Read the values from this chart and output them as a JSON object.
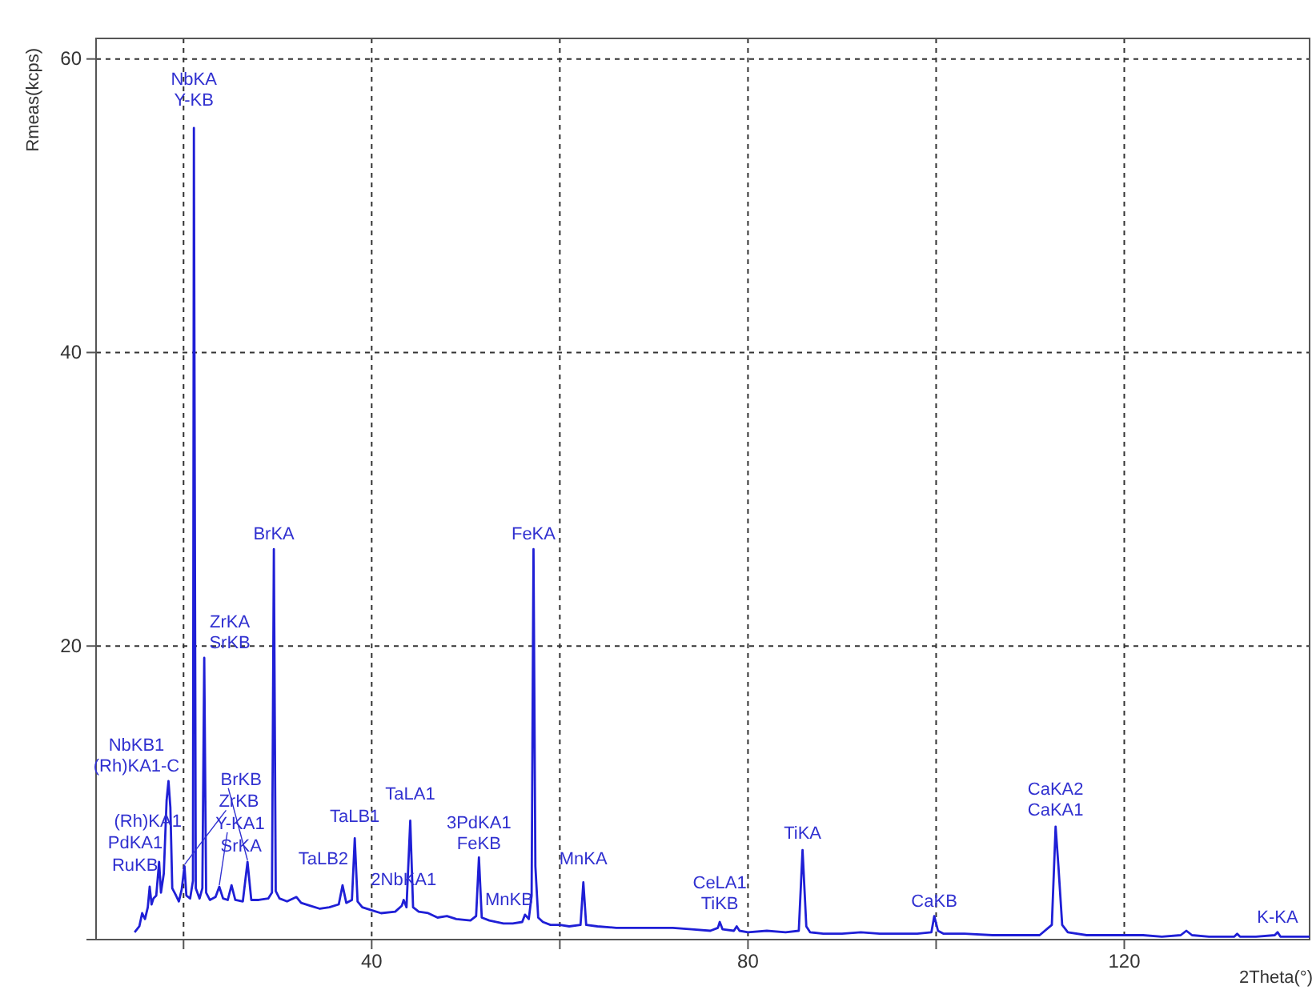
{
  "chart_data": {
    "type": "line",
    "xlabel": "2Theta(°)",
    "ylabel": "Rmeas(kcps)",
    "xlim": [
      10.7,
      139.7
    ],
    "ylim": [
      0,
      61.4
    ],
    "xticks": [
      {
        "value": 20,
        "label": null
      },
      40,
      {
        "value": 60,
        "label": null
      },
      80,
      {
        "value": 100,
        "label": null
      },
      120
    ],
    "yticks": [
      {
        "value": 0,
        "label": null
      },
      20,
      40,
      60
    ],
    "grid": true,
    "series": [
      {
        "color": "#1f1fd6",
        "x": [
          14.8,
          15.3,
          15.6,
          15.9,
          16.2,
          16.4,
          16.6,
          16.8,
          17.1,
          17.4,
          17.6,
          17.9,
          18.2,
          18.4,
          18.6,
          18.8,
          19.2,
          19.5,
          19.8,
          20.1,
          20.3,
          20.7,
          21.0,
          21.1,
          21.3,
          21.7,
          22.0,
          22.2,
          22.4,
          22.8,
          23.4,
          23.8,
          24.2,
          24.7,
          25.1,
          25.5,
          26.3,
          26.8,
          27.2,
          28.0,
          29.0,
          29.4,
          29.6,
          29.8,
          30.2,
          31.0,
          32.0,
          32.5,
          33.5,
          34.5,
          35.5,
          36.5,
          36.9,
          37.3,
          37.9,
          38.2,
          38.5,
          39.0,
          40.0,
          41.0,
          42.5,
          43.2,
          43.4,
          43.7,
          44.1,
          44.4,
          45.0,
          46.0,
          47.0,
          48.0,
          49.0,
          50.5,
          51.1,
          51.4,
          51.7,
          52.5,
          54.0,
          55.0,
          56.0,
          56.3,
          56.7,
          57.0,
          57.2,
          57.4,
          57.7,
          58.2,
          59.0,
          60.0,
          61.0,
          62.2,
          62.5,
          62.8,
          64.0,
          66.0,
          68.0,
          70.0,
          72.0,
          74.0,
          76.0,
          76.8,
          77.0,
          77.3,
          78.5,
          78.8,
          79.1,
          80.0,
          82.0,
          84.0,
          85.4,
          85.8,
          86.2,
          86.6,
          88.0,
          90.0,
          92.0,
          94.0,
          96.0,
          98.0,
          99.5,
          99.8,
          100.2,
          100.8,
          103.0,
          106.0,
          109.0,
          111.0,
          112.3,
          112.7,
          113.0,
          113.4,
          114.0,
          116.0,
          118.0,
          120.0,
          122.0,
          124.0,
          126.0,
          126.6,
          127.2,
          129.0,
          131.7,
          132.0,
          132.3,
          134.0,
          136.0,
          136.3,
          136.6,
          139.7
        ],
        "values": [
          0.5,
          0.9,
          1.8,
          1.4,
          2.2,
          3.6,
          2.4,
          2.8,
          3.0,
          5.3,
          3.2,
          4.5,
          9.5,
          10.8,
          9.0,
          3.5,
          3.0,
          2.6,
          3.4,
          5.0,
          3.0,
          2.8,
          4.0,
          55.3,
          3.5,
          2.8,
          3.5,
          19.2,
          3.2,
          2.7,
          2.9,
          3.6,
          2.8,
          2.7,
          3.7,
          2.7,
          2.6,
          5.3,
          2.7,
          2.7,
          2.8,
          3.2,
          26.6,
          3.3,
          2.8,
          2.6,
          2.9,
          2.5,
          2.3,
          2.1,
          2.2,
          2.4,
          3.7,
          2.5,
          2.7,
          6.9,
          2.6,
          2.2,
          2.0,
          1.8,
          1.9,
          2.3,
          2.7,
          2.2,
          8.1,
          2.2,
          1.9,
          1.8,
          1.5,
          1.6,
          1.4,
          1.3,
          1.6,
          5.6,
          1.5,
          1.3,
          1.1,
          1.1,
          1.2,
          1.7,
          1.4,
          3.0,
          26.6,
          5.0,
          1.5,
          1.2,
          1.0,
          1.0,
          0.9,
          1.0,
          3.9,
          1.0,
          0.9,
          0.8,
          0.8,
          0.8,
          0.8,
          0.7,
          0.6,
          0.8,
          1.2,
          0.7,
          0.6,
          0.9,
          0.6,
          0.5,
          0.6,
          0.5,
          0.6,
          6.1,
          0.9,
          0.5,
          0.4,
          0.4,
          0.5,
          0.4,
          0.4,
          0.4,
          0.5,
          1.6,
          0.6,
          0.4,
          0.4,
          0.3,
          0.3,
          0.3,
          1.0,
          7.7,
          5.0,
          1.0,
          0.5,
          0.3,
          0.3,
          0.3,
          0.3,
          0.2,
          0.3,
          0.6,
          0.3,
          0.2,
          0.2,
          0.4,
          0.2,
          0.2,
          0.3,
          0.5,
          0.2,
          0.2
        ]
      }
    ],
    "line_style": "solid",
    "annotations": [
      {
        "text": "NbKA\nY-KB",
        "x": 21.1,
        "y": 55.3
      },
      {
        "text": "ZrKA\nSrKB",
        "x": 22.2,
        "y": 19.2
      },
      {
        "text": "BrKA",
        "x": 29.6,
        "y": 26.6
      },
      {
        "text": "FeKA",
        "x": 57.2,
        "y": 26.6
      },
      {
        "text": "NbKB1\n(Rh)KA1-C",
        "x": 18.4,
        "y": 10.8
      },
      {
        "text": "(Rh)KA1",
        "x": 17.4,
        "y": 5.3
      },
      {
        "text": "PdKA1",
        "x": 16.4,
        "y": 3.6
      },
      {
        "text": "ZrKB",
        "x": 20.1,
        "y": 5.0
      },
      {
        "text": "RuKB",
        "x": 16.2,
        "y": 2.2
      },
      {
        "text": "SrKA",
        "x": 25.1,
        "y": 3.7
      },
      {
        "text": "Y-KA1",
        "x": 23.8,
        "y": 3.6
      },
      {
        "text": "BrKB",
        "x": 26.8,
        "y": 5.3
      },
      {
        "text": "TaLB1",
        "x": 38.2,
        "y": 6.9
      },
      {
        "text": "TaLB2",
        "x": 36.9,
        "y": 3.7
      },
      {
        "text": "TaLA1",
        "x": 44.1,
        "y": 8.1
      },
      {
        "text": "2NbKA1",
        "x": 43.4,
        "y": 2.7
      },
      {
        "text": "3PdKA1\nFeKB",
        "x": 51.4,
        "y": 5.6
      },
      {
        "text": "MnKB",
        "x": 56.3,
        "y": 1.7
      },
      {
        "text": "MnKA",
        "x": 62.5,
        "y": 3.9
      },
      {
        "text": "CeLA1\nTiKB",
        "x": 77.0,
        "y": 1.2
      },
      {
        "text": "TiKA",
        "x": 85.8,
        "y": 6.1
      },
      {
        "text": "CaKB",
        "x": 99.8,
        "y": 1.6
      },
      {
        "text": "CaKA2\nCaKA1",
        "x": 112.7,
        "y": 7.7
      },
      {
        "text": "K-KA",
        "x": 136.3,
        "y": 0.5
      }
    ]
  }
}
